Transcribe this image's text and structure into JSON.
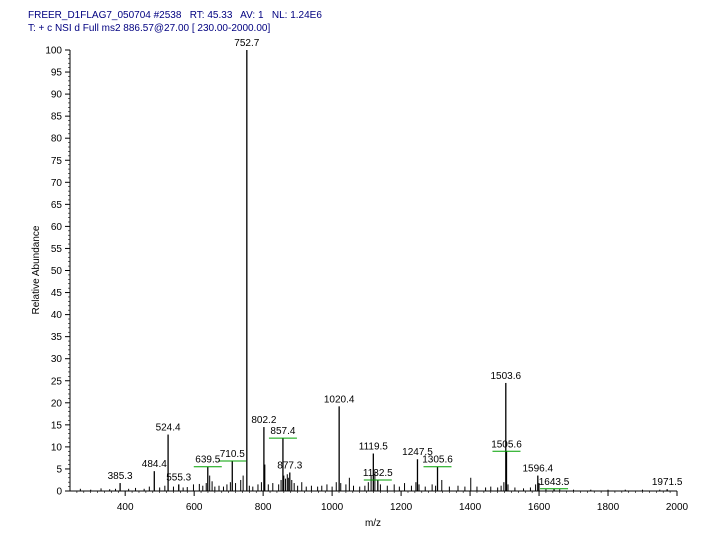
{
  "header": {
    "line1": "FREER_D1FLAG7_050704 #2538   RT: 45.33   AV: 1   NL: 1.24E6",
    "line2": "T: + c NSI d Full ms2 886.57@27.00 [ 230.00-2000.00]"
  },
  "chart_data": {
    "type": "line",
    "xlabel": "m/z",
    "ylabel": "Relative Abundance",
    "xlim": [
      240,
      2000
    ],
    "ylim": [
      0,
      100
    ],
    "x_ticks": [
      400,
      600,
      800,
      1000,
      1200,
      1400,
      1600,
      1800,
      2000
    ],
    "y_ticks": [
      0,
      5,
      10,
      15,
      20,
      25,
      30,
      35,
      40,
      45,
      50,
      55,
      60,
      65,
      70,
      75,
      80,
      85,
      90,
      95,
      100
    ],
    "colors": {
      "header": "#000080",
      "spectrum": "#000000",
      "marker": "#00a000"
    },
    "labeled_peaks": [
      {
        "mz": 752.7,
        "intensity": 100,
        "label": "752.7"
      },
      {
        "mz": 1503.6,
        "intensity": 24.5,
        "label": "1503.6"
      },
      {
        "mz": 1020.4,
        "intensity": 19.2,
        "label": "1020.4"
      },
      {
        "mz": 802.2,
        "intensity": 14.5,
        "label": "802.2"
      },
      {
        "mz": 524.4,
        "intensity": 12.8,
        "label": "524.4"
      },
      {
        "mz": 857.4,
        "intensity": 12.0,
        "label": "857.4"
      },
      {
        "mz": 1119.5,
        "intensity": 8.5,
        "label": "1119.5"
      },
      {
        "mz": 1247.5,
        "intensity": 7.2,
        "label": "1247.5"
      },
      {
        "mz": 710.5,
        "intensity": 6.8,
        "label": "710.5"
      },
      {
        "mz": 1505.6,
        "intensity": 9.0,
        "label": "1505.6"
      },
      {
        "mz": 639.5,
        "intensity": 5.5,
        "label": "639.5"
      },
      {
        "mz": 1305.6,
        "intensity": 5.5,
        "label": "1305.6"
      },
      {
        "mz": 484.4,
        "intensity": 4.5,
        "label": "484.4"
      },
      {
        "mz": 877.3,
        "intensity": 4.2,
        "label": "877.3"
      },
      {
        "mz": 1596.4,
        "intensity": 3.5,
        "label": "1596.4"
      },
      {
        "mz": 1132.5,
        "intensity": 2.5,
        "label": "1132.5"
      },
      {
        "mz": 385.3,
        "intensity": 1.8,
        "label": "385.3"
      },
      {
        "mz": 555.3,
        "intensity": 1.5,
        "label": "555.3"
      },
      {
        "mz": 1643.5,
        "intensity": 0.5,
        "label": "1643.5"
      },
      {
        "mz": 1971.5,
        "intensity": 0.4,
        "label": "1971.5"
      }
    ],
    "minor_peaks": [
      [
        270,
        0.5
      ],
      [
        300,
        0.3
      ],
      [
        330,
        0.6
      ],
      [
        355,
        0.4
      ],
      [
        372,
        0.5
      ],
      [
        410,
        0.5
      ],
      [
        430,
        0.7
      ],
      [
        455,
        0.5
      ],
      [
        470,
        1.0
      ],
      [
        500,
        0.8
      ],
      [
        515,
        1.2
      ],
      [
        540,
        1.0
      ],
      [
        568,
        0.8
      ],
      [
        580,
        0.9
      ],
      [
        598,
        1.5
      ],
      [
        615,
        1.6
      ],
      [
        625,
        1.2
      ],
      [
        635,
        1.8
      ],
      [
        645,
        3.5
      ],
      [
        652,
        2.2
      ],
      [
        660,
        1.0
      ],
      [
        672,
        1.2
      ],
      [
        685,
        1.0
      ],
      [
        695,
        1.5
      ],
      [
        705,
        2.0
      ],
      [
        720,
        1.8
      ],
      [
        735,
        2.5
      ],
      [
        742,
        3.5
      ],
      [
        760,
        1.2
      ],
      [
        770,
        1.0
      ],
      [
        785,
        1.5
      ],
      [
        795,
        2.0
      ],
      [
        805,
        6.0
      ],
      [
        815,
        1.5
      ],
      [
        828,
        1.8
      ],
      [
        845,
        1.5
      ],
      [
        852,
        2.5
      ],
      [
        860,
        3.5
      ],
      [
        865,
        2.8
      ],
      [
        870,
        3.8
      ],
      [
        873,
        3.0
      ],
      [
        883,
        2.5
      ],
      [
        890,
        1.8
      ],
      [
        900,
        1.2
      ],
      [
        912,
        2.0
      ],
      [
        925,
        1.0
      ],
      [
        940,
        1.2
      ],
      [
        958,
        1.0
      ],
      [
        970,
        1.2
      ],
      [
        985,
        1.5
      ],
      [
        1000,
        1.0
      ],
      [
        1012,
        2.0
      ],
      [
        1025,
        1.8
      ],
      [
        1040,
        1.5
      ],
      [
        1050,
        3.0
      ],
      [
        1062,
        1.2
      ],
      [
        1080,
        1.0
      ],
      [
        1095,
        1.2
      ],
      [
        1105,
        2.0
      ],
      [
        1113,
        3.5
      ],
      [
        1124,
        4.5
      ],
      [
        1140,
        1.5
      ],
      [
        1160,
        1.2
      ],
      [
        1180,
        1.5
      ],
      [
        1195,
        1.0
      ],
      [
        1210,
        1.8
      ],
      [
        1230,
        1.2
      ],
      [
        1243,
        2.0
      ],
      [
        1252,
        1.5
      ],
      [
        1270,
        1.0
      ],
      [
        1290,
        1.5
      ],
      [
        1300,
        1.2
      ],
      [
        1318,
        2.5
      ],
      [
        1340,
        1.0
      ],
      [
        1365,
        1.2
      ],
      [
        1385,
        1.0
      ],
      [
        1402,
        3.0
      ],
      [
        1420,
        1.0
      ],
      [
        1445,
        0.8
      ],
      [
        1460,
        1.0
      ],
      [
        1480,
        0.8
      ],
      [
        1490,
        1.2
      ],
      [
        1498,
        2.0
      ],
      [
        1510,
        1.5
      ],
      [
        1530,
        0.8
      ],
      [
        1555,
        0.6
      ],
      [
        1575,
        0.8
      ],
      [
        1590,
        1.5
      ],
      [
        1600,
        1.8
      ],
      [
        1620,
        0.5
      ],
      [
        1660,
        0.4
      ],
      [
        1700,
        0.3
      ],
      [
        1750,
        0.3
      ],
      [
        1800,
        0.3
      ],
      [
        1850,
        0.3
      ],
      [
        1900,
        0.3
      ],
      [
        1950,
        0.3
      ]
    ],
    "green_markers": [
      {
        "mz": 639.5,
        "level": 5.5,
        "label": "639.5"
      },
      {
        "mz": 710.5,
        "level": 6.8,
        "label": "710.5"
      },
      {
        "mz": 857.4,
        "level": 12.0,
        "label": "857.4"
      },
      {
        "mz": 1305.6,
        "level": 5.5,
        "label": "1305.6"
      },
      {
        "mz": 1505.6,
        "level": 9.0,
        "label": "1505.6"
      },
      {
        "mz": 1132.5,
        "level": 2.5,
        "label": "1132.5"
      },
      {
        "mz": 1643.5,
        "level": 0.5,
        "label": "1643.5"
      }
    ]
  }
}
